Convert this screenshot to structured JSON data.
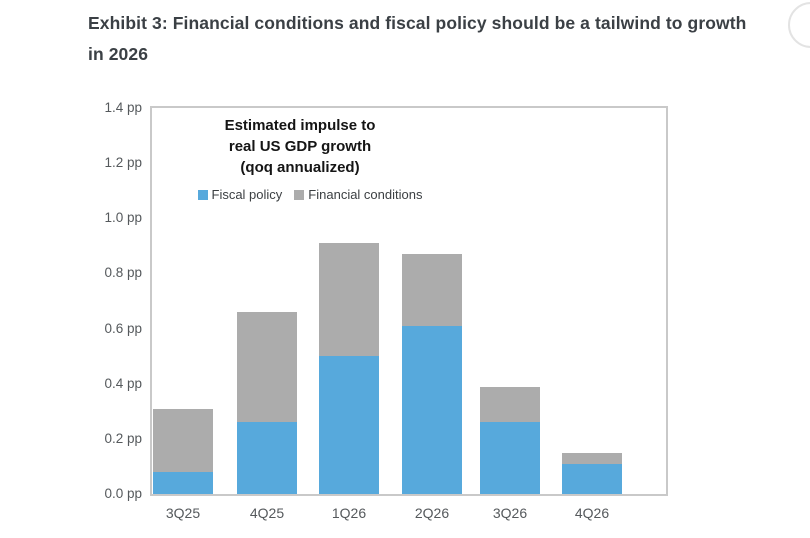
{
  "page": {
    "title_line1": "Exhibit 3: Financial conditions and fiscal policy should be a tailwind to growth",
    "title_line2": "in 2026"
  },
  "chart_data": {
    "type": "bar",
    "stacked": true,
    "title": "Estimated impulse to\nreal US GDP growth\n(qoq annualized)",
    "categories": [
      "3Q25",
      "4Q25",
      "1Q26",
      "2Q26",
      "3Q26",
      "4Q26"
    ],
    "series": [
      {
        "name": "Fiscal policy",
        "color": "#57a9dc",
        "values": [
          0.08,
          0.26,
          0.5,
          0.61,
          0.26,
          0.11
        ]
      },
      {
        "name": "Financial conditions",
        "color": "#acacac",
        "values": [
          0.23,
          0.4,
          0.41,
          0.26,
          0.13,
          0.04
        ]
      }
    ],
    "totals": [
      0.31,
      0.66,
      0.91,
      0.87,
      0.39,
      0.15
    ],
    "unit": "pp",
    "ylim": [
      0,
      1.4
    ],
    "y_tick_step": 0.2,
    "y_ticks": [
      "0.0 pp",
      "0.2 pp",
      "0.4 pp",
      "0.6 pp",
      "0.8 pp",
      "1.0 pp",
      "1.2 pp",
      "1.4 pp"
    ],
    "xlabel": "",
    "ylabel": "",
    "grid": false,
    "legend_position": "top-center"
  }
}
